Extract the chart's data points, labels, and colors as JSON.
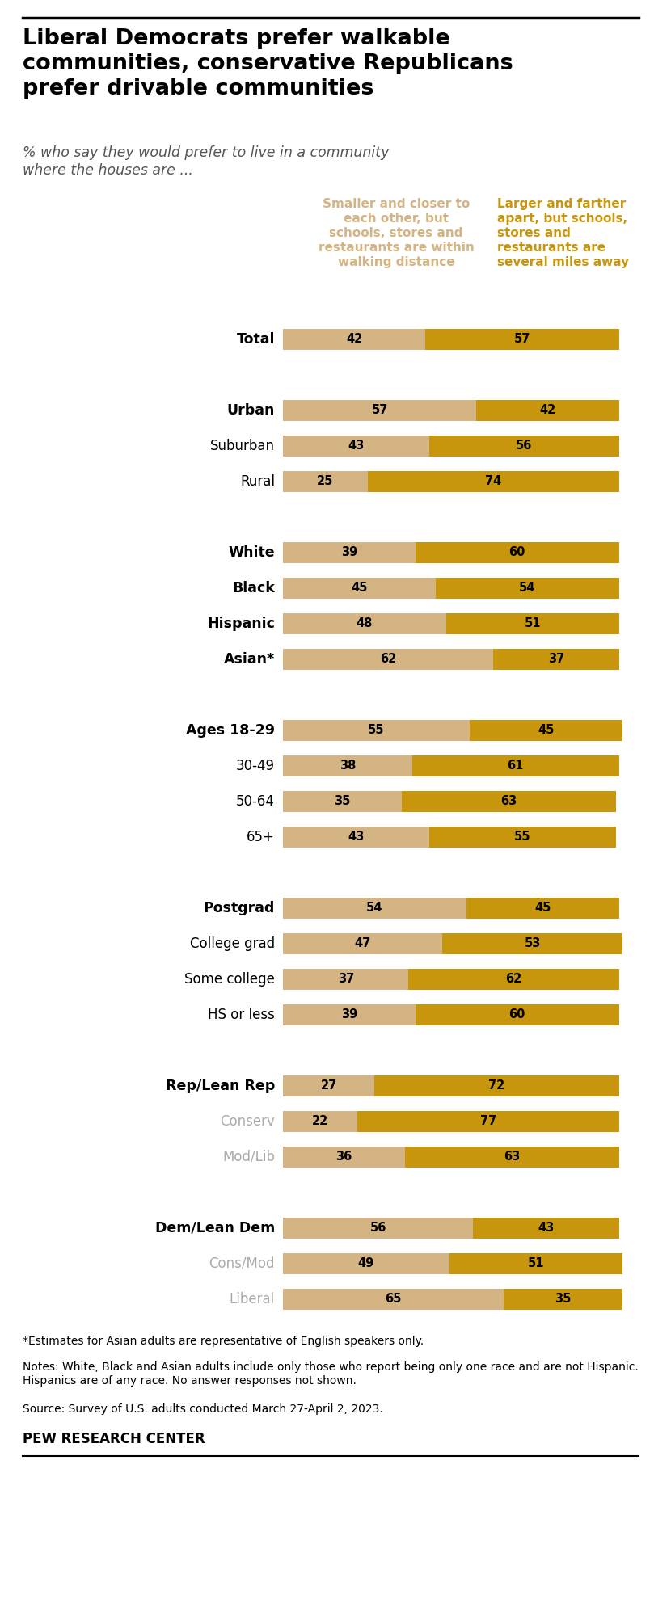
{
  "title": "Liberal Democrats prefer walkable\ncommunities, conservative Republicans\nprefer drivable communities",
  "subtitle": "% who say they would prefer to live in a community\nwhere the houses are ...",
  "legend_left": "Smaller and closer to\neach other, but\nschools, stores and\nrestaurants are within\nwalking distance",
  "legend_right": "Larger and farther\napart, but schools,\nstores and\nrestaurants are\nseveral miles away",
  "color_left": "#d4b483",
  "color_right": "#c8960c",
  "categories": [
    "Total",
    "",
    "Urban",
    "Suburban",
    "Rural",
    "",
    "White",
    "Black",
    "Hispanic",
    "Asian*",
    "",
    "Ages 18-29",
    "30-49",
    "50-64",
    "65+",
    "",
    "Postgrad",
    "College grad",
    "Some college",
    "HS or less",
    "",
    "Rep/Lean Rep",
    "Conserv",
    "Mod/Lib",
    "",
    "Dem/Lean Dem",
    "Cons/Mod",
    "Liberal"
  ],
  "values_left": [
    42,
    0,
    57,
    43,
    25,
    0,
    39,
    45,
    48,
    62,
    0,
    55,
    38,
    35,
    43,
    0,
    54,
    47,
    37,
    39,
    0,
    27,
    22,
    36,
    0,
    56,
    49,
    65
  ],
  "values_right": [
    57,
    0,
    42,
    56,
    74,
    0,
    60,
    54,
    51,
    37,
    0,
    45,
    61,
    63,
    55,
    0,
    45,
    53,
    62,
    60,
    0,
    72,
    77,
    63,
    0,
    43,
    51,
    35
  ],
  "gray_labels": [
    "Conserv",
    "Mod/Lib",
    "Cons/Mod",
    "Liberal"
  ],
  "bold_labels": [
    "Total",
    "Urban",
    "White",
    "Black",
    "Hispanic",
    "Asian*",
    "Ages 18-29",
    "Postgrad",
    "Rep/Lean Rep",
    "Dem/Lean Dem"
  ],
  "footnote1": "*Estimates for Asian adults are representative of English speakers only.",
  "footnote2": "Notes: White, Black and Asian adults include only those who report being only one race and are not Hispanic. Hispanics are of any race. No answer responses not shown.",
  "footnote3": "Source: Survey of U.S. adults conducted March 27-April 2, 2023.",
  "footer": "PEW RESEARCH CENTER",
  "background_color": "#ffffff"
}
